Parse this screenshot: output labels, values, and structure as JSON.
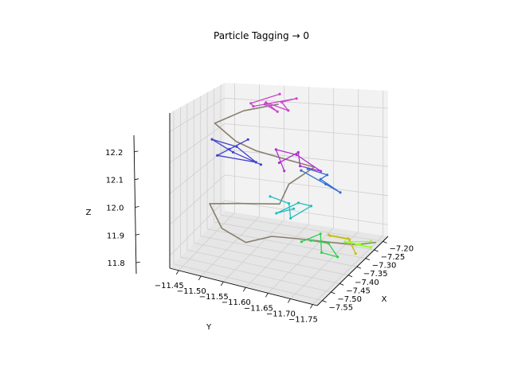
{
  "chart_data": {
    "type": "line",
    "projection": "3d",
    "title": "Particle Tagging → 0",
    "xlabel": "X",
    "ylabel": "Y",
    "zlabel": "Z",
    "xlim": [
      -7.58,
      -7.17
    ],
    "ylim": [
      -11.76,
      -11.43
    ],
    "zlim": [
      11.76,
      12.26
    ],
    "xticks": [
      -7.55,
      -7.5,
      -7.45,
      -7.4,
      -7.35,
      -7.3,
      -7.25,
      -7.2
    ],
    "xtick_labels": [
      "−7.55",
      "−7.50",
      "−7.45",
      "−7.40",
      "−7.35",
      "−7.30",
      "−7.25",
      "−7.20"
    ],
    "yticks": [
      -11.45,
      -11.5,
      -11.55,
      -11.6,
      -11.65,
      -11.7,
      -11.75
    ],
    "ytick_labels": [
      "−11.45",
      "−11.50",
      "−11.55",
      "−11.60",
      "−11.65",
      "−11.70",
      "−11.75"
    ],
    "zticks": [
      11.8,
      11.9,
      12.0,
      12.1,
      12.2
    ],
    "ztick_labels": [
      "11.8",
      "11.9",
      "12.0",
      "12.1",
      "12.2"
    ],
    "grid": true,
    "series": [
      {
        "color": "#cc44cc",
        "points": [
          [
            -7.3,
            -11.55,
            12.24
          ],
          [
            -7.28,
            -11.57,
            12.21
          ],
          [
            -7.26,
            -11.54,
            12.23
          ],
          [
            -7.24,
            -11.58,
            12.2
          ],
          [
            -7.22,
            -11.56,
            12.22
          ],
          [
            -7.25,
            -11.6,
            12.25
          ],
          [
            -7.28,
            -11.52,
            12.22
          ],
          [
            -7.23,
            -11.5,
            12.21
          ],
          [
            -7.2,
            -11.55,
            12.24
          ]
        ]
      },
      {
        "color": "#4040d0",
        "points": [
          [
            -7.38,
            -11.5,
            12.1
          ],
          [
            -7.35,
            -11.53,
            12.13
          ],
          [
            -7.4,
            -11.48,
            12.08
          ],
          [
            -7.36,
            -11.55,
            12.06
          ],
          [
            -7.33,
            -11.5,
            12.09
          ],
          [
            -7.37,
            -11.46,
            12.12
          ],
          [
            -7.42,
            -11.52,
            12.11
          ],
          [
            -7.39,
            -11.57,
            12.07
          ]
        ]
      },
      {
        "color": "#b030d0",
        "points": [
          [
            -7.3,
            -11.58,
            12.04
          ],
          [
            -7.27,
            -11.61,
            12.07
          ],
          [
            -7.32,
            -11.63,
            12.05
          ],
          [
            -7.28,
            -11.66,
            12.02
          ],
          [
            -7.25,
            -11.6,
            12.05
          ],
          [
            -7.29,
            -11.57,
            12.08
          ],
          [
            -7.33,
            -11.6,
            12.03
          ]
        ]
      },
      {
        "color": "#3070d0",
        "points": [
          [
            -7.24,
            -11.62,
            12.0
          ],
          [
            -7.21,
            -11.65,
            11.97
          ],
          [
            -7.19,
            -11.63,
            11.94
          ],
          [
            -7.22,
            -11.68,
            11.92
          ],
          [
            -7.25,
            -11.66,
            11.96
          ],
          [
            -7.22,
            -11.6,
            11.98
          ]
        ]
      },
      {
        "color": "#20c0c0",
        "points": [
          [
            -7.36,
            -11.58,
            11.95
          ],
          [
            -7.33,
            -11.61,
            11.92
          ],
          [
            -7.38,
            -11.63,
            11.9
          ],
          [
            -7.34,
            -11.66,
            11.93
          ],
          [
            -7.3,
            -11.62,
            11.91
          ],
          [
            -7.35,
            -11.59,
            11.89
          ],
          [
            -7.39,
            -11.64,
            11.94
          ]
        ]
      },
      {
        "color": "#30d050",
        "points": [
          [
            -7.4,
            -11.66,
            11.84
          ],
          [
            -7.37,
            -11.69,
            11.86
          ],
          [
            -7.42,
            -11.71,
            11.83
          ],
          [
            -7.38,
            -11.73,
            11.8
          ],
          [
            -7.35,
            -11.7,
            11.82
          ],
          [
            -7.4,
            -11.68,
            11.85
          ]
        ]
      },
      {
        "color": "#c8c020",
        "points": [
          [
            -7.34,
            -11.7,
            11.84
          ],
          [
            -7.31,
            -11.73,
            11.82
          ],
          [
            -7.33,
            -11.75,
            11.79
          ],
          [
            -7.29,
            -11.72,
            11.81
          ],
          [
            -7.32,
            -11.69,
            11.83
          ]
        ]
      },
      {
        "color": "#90ff20",
        "points": [
          [
            -7.3,
            -11.74,
            11.8
          ],
          [
            -7.27,
            -11.76,
            11.78
          ],
          [
            -7.25,
            -11.73,
            11.77
          ],
          [
            -7.28,
            -11.71,
            11.79
          ],
          [
            -7.24,
            -11.75,
            11.78
          ]
        ]
      }
    ],
    "trail": {
      "color": "#888070",
      "points": [
        [
          -7.24,
          -11.56,
          12.22
        ],
        [
          -7.28,
          -11.5,
          12.2
        ],
        [
          -7.35,
          -11.46,
          12.17
        ],
        [
          -7.4,
          -11.52,
          12.14
        ],
        [
          -7.36,
          -11.55,
          12.1
        ],
        [
          -7.31,
          -11.6,
          12.06
        ],
        [
          -7.26,
          -11.64,
          12.02
        ],
        [
          -7.3,
          -11.6,
          11.97
        ],
        [
          -7.36,
          -11.6,
          11.93
        ],
        [
          -7.44,
          -11.54,
          11.95
        ],
        [
          -7.52,
          -11.5,
          11.97
        ],
        [
          -7.56,
          -11.54,
          11.92
        ],
        [
          -7.52,
          -11.58,
          11.87
        ],
        [
          -7.47,
          -11.62,
          11.88
        ],
        [
          -7.42,
          -11.66,
          11.86
        ],
        [
          -7.36,
          -11.7,
          11.83
        ],
        [
          -7.3,
          -11.74,
          11.8
        ],
        [
          -7.24,
          -11.76,
          11.78
        ]
      ]
    }
  }
}
